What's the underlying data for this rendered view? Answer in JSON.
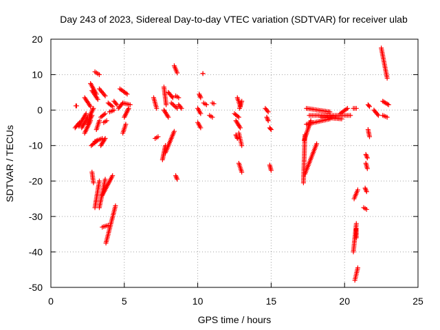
{
  "chart_data": {
    "type": "scatter",
    "title": "Day 243 of 2023, Sidereal Day-to-day VTEC variation (SDTVAR) for receiver ulab",
    "xlabel": "GPS time / hours",
    "ylabel": "SDTVAR / TECUs",
    "xlim": [
      0,
      25
    ],
    "ylim": [
      -50,
      20
    ],
    "xticks": [
      0,
      5,
      10,
      15,
      20,
      25
    ],
    "yticks": [
      -50,
      -40,
      -30,
      -20,
      -10,
      0,
      10,
      20
    ],
    "grid": true,
    "marker": "+",
    "color": "#ff0000",
    "segments": [
      [
        1.65,
        -5.0,
        1.95,
        -3.5
      ],
      [
        1.7,
        1.2,
        1.75,
        1.2
      ],
      [
        1.9,
        -4.5,
        2.4,
        -1.0
      ],
      [
        2.1,
        -5.0,
        2.5,
        -2.0
      ],
      [
        2.3,
        -6.5,
        2.7,
        -3.0
      ],
      [
        2.5,
        -4.0,
        2.8,
        -1.5
      ],
      [
        2.6,
        -2.0,
        2.9,
        0.5
      ],
      [
        2.3,
        3.5,
        2.7,
        1.0
      ],
      [
        2.7,
        7.5,
        3.1,
        4.5
      ],
      [
        2.8,
        5.5,
        3.2,
        3.0
      ],
      [
        3.0,
        10.8,
        3.3,
        10.0
      ],
      [
        3.3,
        6.0,
        3.7,
        4.0
      ],
      [
        2.75,
        -10.0,
        3.2,
        -8.5
      ],
      [
        3.0,
        -8.8,
        3.5,
        -8.0
      ],
      [
        3.4,
        -10.0,
        3.7,
        -8.0
      ],
      [
        3.1,
        -5.5,
        3.3,
        -3.0
      ],
      [
        3.4,
        -2.0,
        3.7,
        -1.0
      ],
      [
        3.6,
        -3.5,
        3.8,
        -3.0
      ],
      [
        2.8,
        -17.5,
        2.9,
        -20.5
      ],
      [
        3.0,
        -27.5,
        3.3,
        -20.0
      ],
      [
        3.3,
        -27.5,
        3.7,
        -19.5
      ],
      [
        3.5,
        -24.0,
        4.2,
        -18.5
      ],
      [
        3.5,
        -33.0,
        3.9,
        -32.5
      ],
      [
        3.75,
        -37.5,
        4.4,
        -27.0
      ],
      [
        3.9,
        2.0,
        4.2,
        1.0
      ],
      [
        4.0,
        -0.5,
        4.3,
        0.0
      ],
      [
        4.3,
        2.5,
        4.5,
        1.5
      ],
      [
        4.6,
        0.5,
        4.9,
        2.0
      ],
      [
        4.7,
        6.0,
        5.2,
        4.5
      ],
      [
        4.9,
        2.0,
        5.4,
        1.5
      ],
      [
        5.0,
        -2.0,
        5.3,
        0.5
      ],
      [
        4.9,
        -6.5,
        5.1,
        -4.0
      ],
      [
        7.0,
        3.5,
        7.2,
        0.5
      ],
      [
        7.1,
        -8.0,
        7.3,
        -7.5
      ],
      [
        7.6,
        -14.0,
        7.8,
        -10.0
      ],
      [
        7.7,
        6.5,
        7.85,
        1.5
      ],
      [
        7.7,
        0.0,
        8.0,
        -2.0
      ],
      [
        7.8,
        -12.0,
        8.4,
        -6.0
      ],
      [
        8.0,
        5.0,
        8.3,
        3.5
      ],
      [
        8.2,
        2.0,
        8.6,
        0.5
      ],
      [
        8.4,
        12.5,
        8.6,
        10.5
      ],
      [
        8.5,
        4.0,
        8.7,
        3.5
      ],
      [
        8.7,
        1.5,
        8.9,
        0.5
      ],
      [
        8.5,
        -18.5,
        8.6,
        -19.5
      ],
      [
        10.1,
        4.5,
        10.2,
        3.5
      ],
      [
        10.0,
        0.5,
        10.2,
        -1.0
      ],
      [
        10.0,
        -3.5,
        10.2,
        -5.0
      ],
      [
        10.35,
        10.3,
        10.35,
        10.3
      ],
      [
        10.4,
        2.0,
        10.6,
        1.5
      ],
      [
        10.8,
        -1.5,
        11.0,
        -2.0
      ],
      [
        11.0,
        2.0,
        11.1,
        1.8
      ],
      [
        12.5,
        -1.0,
        12.8,
        -2.0
      ],
      [
        12.6,
        -3.0,
        12.9,
        -5.0
      ],
      [
        12.7,
        3.5,
        12.9,
        1.0
      ],
      [
        12.8,
        -6.5,
        13.0,
        -10.0
      ],
      [
        12.6,
        -7.0,
        12.7,
        -8.0
      ],
      [
        12.8,
        -15.0,
        13.0,
        -17.5
      ],
      [
        12.85,
        0.5,
        13.0,
        2.5
      ],
      [
        14.6,
        0.5,
        14.8,
        -0.5
      ],
      [
        14.7,
        -2.0,
        14.8,
        -3.0
      ],
      [
        14.9,
        -5.0,
        15.0,
        -5.5
      ],
      [
        14.9,
        -15.5,
        15.0,
        -17.0
      ],
      [
        17.2,
        -20.5,
        17.3,
        -7.0
      ],
      [
        17.3,
        -18.0,
        18.1,
        -9.5
      ],
      [
        17.25,
        -8.5,
        17.7,
        -3.0
      ],
      [
        17.4,
        -4.0,
        19.0,
        -2.5
      ],
      [
        17.6,
        -1.5,
        20.4,
        -1.5
      ],
      [
        17.4,
        0.5,
        19.0,
        -0.5
      ],
      [
        18.4,
        -2.0,
        19.8,
        -2.5
      ],
      [
        19.7,
        -1.0,
        20.2,
        0.5
      ],
      [
        20.6,
        0.5,
        20.8,
        0.5
      ],
      [
        20.6,
        -40.0,
        20.8,
        -32.0
      ],
      [
        20.65,
        -25.0,
        20.9,
        -22.5
      ],
      [
        20.7,
        -48.0,
        20.9,
        -44.5
      ],
      [
        20.8,
        -36.0,
        20.8,
        -33.5
      ],
      [
        21.3,
        -27.5,
        21.5,
        -28.0
      ],
      [
        21.4,
        -22.0,
        21.5,
        -23.0
      ],
      [
        21.45,
        -15.0,
        21.55,
        -16.5
      ],
      [
        21.45,
        -12.5,
        21.55,
        -13.5
      ],
      [
        21.6,
        -5.5,
        21.7,
        -7.5
      ],
      [
        21.6,
        1.5,
        21.7,
        1.0
      ],
      [
        22.0,
        0.0,
        22.3,
        -1.5
      ],
      [
        22.5,
        17.5,
        22.9,
        9.0
      ],
      [
        22.6,
        2.5,
        23.0,
        1.5
      ],
      [
        22.6,
        -1.5,
        22.9,
        -2.0
      ]
    ]
  }
}
